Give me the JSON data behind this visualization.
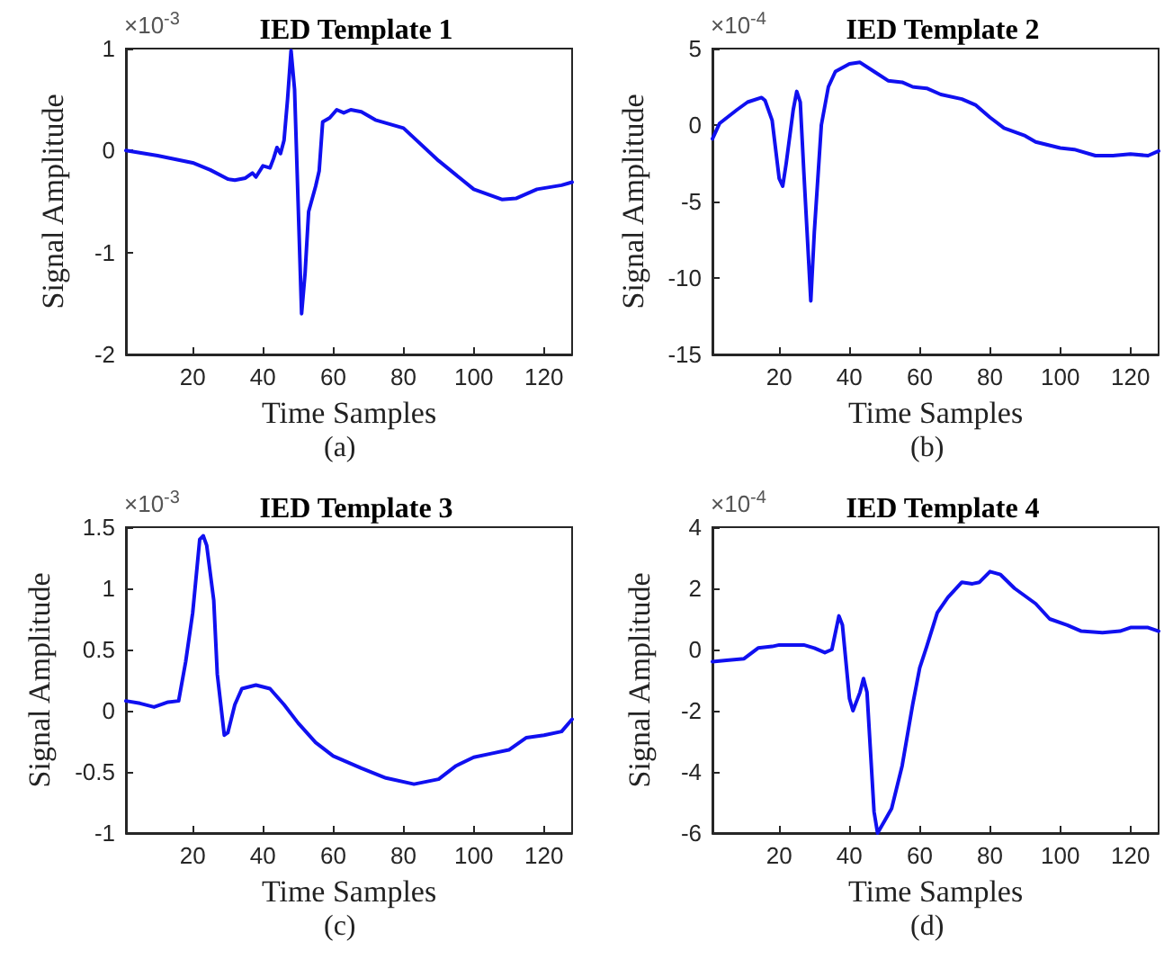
{
  "chart_data": [
    {
      "type": "line",
      "title": "IED Template 1",
      "xlabel": "Time Samples",
      "ylabel": "Signal Amplitude",
      "annotations": [
        "×10$^{-3}$",
        "(a)"
      ],
      "xlim": [
        1,
        128
      ],
      "xticks": [
        20,
        40,
        60,
        80,
        100,
        120
      ],
      "ylim": [
        -2,
        1
      ],
      "yticks": [
        -2,
        -1,
        0,
        1
      ],
      "grid": false,
      "line_style": "solid",
      "series": [
        {
          "color": "#1010f0",
          "x": [
            1,
            10,
            20,
            25,
            30,
            32,
            35,
            37,
            38,
            40,
            42,
            43,
            44,
            45,
            46,
            47,
            48,
            49,
            50,
            51,
            52,
            53,
            55,
            56,
            57,
            59,
            61,
            63,
            65,
            68,
            72,
            80,
            90,
            100,
            108,
            112,
            118,
            125,
            128
          ],
          "values": [
            0,
            -0.05,
            -0.12,
            -0.19,
            -0.28,
            -0.29,
            -0.27,
            -0.22,
            -0.26,
            -0.15,
            -0.17,
            -0.08,
            0.03,
            -0.03,
            0.1,
            0.5,
            0.98,
            0.6,
            -0.5,
            -1.6,
            -1.2,
            -0.6,
            -0.35,
            -0.2,
            0.28,
            0.32,
            0.4,
            0.37,
            0.4,
            0.38,
            0.3,
            0.22,
            -0.1,
            -0.38,
            -0.48,
            -0.47,
            -0.38,
            -0.34,
            -0.31
          ]
        }
      ]
    },
    {
      "type": "line",
      "title": "IED Template 2",
      "xlabel": "Time Samples",
      "ylabel": "Signal Amplitude",
      "annotations": [
        "×10$^{-4}$",
        "(b)"
      ],
      "xlim": [
        1,
        128
      ],
      "xticks": [
        20,
        40,
        60,
        80,
        100,
        120
      ],
      "ylim": [
        -15,
        5
      ],
      "yticks": [
        -15,
        -10,
        -5,
        0,
        5
      ],
      "grid": false,
      "line_style": "solid",
      "series": [
        {
          "color": "#1010f0",
          "x": [
            1,
            3,
            8,
            11,
            15,
            16,
            18,
            20,
            21,
            22,
            24,
            25,
            26,
            27,
            29,
            30,
            32,
            34,
            36,
            40,
            43,
            47,
            51,
            55,
            58,
            62,
            66,
            72,
            76,
            80,
            84,
            90,
            93,
            100,
            104,
            110,
            115,
            120,
            125,
            128
          ],
          "values": [
            -0.9,
            0.1,
            1.0,
            1.5,
            1.8,
            1.6,
            0.3,
            -3.5,
            -4.0,
            -2.5,
            1.0,
            2.2,
            1.5,
            -3,
            -11.5,
            -7,
            0,
            2.5,
            3.5,
            4.0,
            4.1,
            3.5,
            2.9,
            2.8,
            2.5,
            2.4,
            2.0,
            1.7,
            1.3,
            0.5,
            -0.2,
            -0.7,
            -1.1,
            -1.5,
            -1.6,
            -2.0,
            -2.0,
            -1.9,
            -2.0,
            -1.7
          ]
        }
      ]
    },
    {
      "type": "line",
      "title": "IED Template 3",
      "xlabel": "Time Samples",
      "ylabel": "Signal Amplitude",
      "annotations": [
        "×10$^{-3}$",
        "(c)"
      ],
      "xlim": [
        1,
        128
      ],
      "xticks": [
        20,
        40,
        60,
        80,
        100,
        120
      ],
      "ylim": [
        -1,
        1.5
      ],
      "yticks": [
        -1,
        -0.5,
        0,
        0.5,
        1,
        1.5
      ],
      "grid": false,
      "line_style": "solid",
      "series": [
        {
          "color": "#1010f0",
          "x": [
            1,
            5,
            9,
            13,
            16,
            18,
            20,
            22,
            23,
            24,
            26,
            27,
            29,
            30,
            32,
            34,
            38,
            42,
            46,
            50,
            55,
            60,
            68,
            75,
            83,
            90,
            95,
            100,
            105,
            110,
            115,
            120,
            125,
            128
          ],
          "values": [
            0.08,
            0.06,
            0.03,
            0.07,
            0.08,
            0.4,
            0.8,
            1.4,
            1.43,
            1.35,
            0.9,
            0.3,
            -0.2,
            -0.18,
            0.05,
            0.18,
            0.21,
            0.18,
            0.05,
            -0.1,
            -0.26,
            -0.37,
            -0.47,
            -0.55,
            -0.6,
            -0.56,
            -0.45,
            -0.38,
            -0.35,
            -0.32,
            -0.22,
            -0.2,
            -0.17,
            -0.07
          ]
        }
      ]
    },
    {
      "type": "line",
      "title": "IED Template 4",
      "xlabel": "Time Samples",
      "ylabel": "Signal Amplitude",
      "annotations": [
        "×10$^{-4}$",
        "(d)"
      ],
      "xlim": [
        1,
        128
      ],
      "xticks": [
        20,
        40,
        60,
        80,
        100,
        120
      ],
      "ylim": [
        -6,
        4
      ],
      "yticks": [
        -6,
        -4,
        -2,
        0,
        2,
        4
      ],
      "grid": false,
      "line_style": "solid",
      "series": [
        {
          "color": "#1010f0",
          "x": [
            1,
            5,
            10,
            14,
            18,
            20,
            27,
            30,
            33,
            35,
            37,
            38,
            40,
            41,
            43,
            44,
            45,
            47,
            48,
            50,
            52,
            55,
            58,
            60,
            62,
            65,
            68,
            72,
            75,
            77,
            80,
            83,
            87,
            93,
            97,
            102,
            106,
            112,
            117,
            120,
            125,
            128
          ],
          "values": [
            -0.4,
            -0.35,
            -0.3,
            0.05,
            0.1,
            0.15,
            0.15,
            0.05,
            -0.1,
            0,
            1.1,
            0.8,
            -1.6,
            -2.0,
            -1.4,
            -0.95,
            -1.4,
            -5.3,
            -6.0,
            -5.6,
            -5.2,
            -3.8,
            -1.8,
            -0.6,
            0.1,
            1.2,
            1.7,
            2.2,
            2.15,
            2.2,
            2.55,
            2.45,
            2.0,
            1.5,
            1.0,
            0.8,
            0.6,
            0.55,
            0.6,
            0.72,
            0.72,
            0.6
          ]
        }
      ]
    }
  ]
}
